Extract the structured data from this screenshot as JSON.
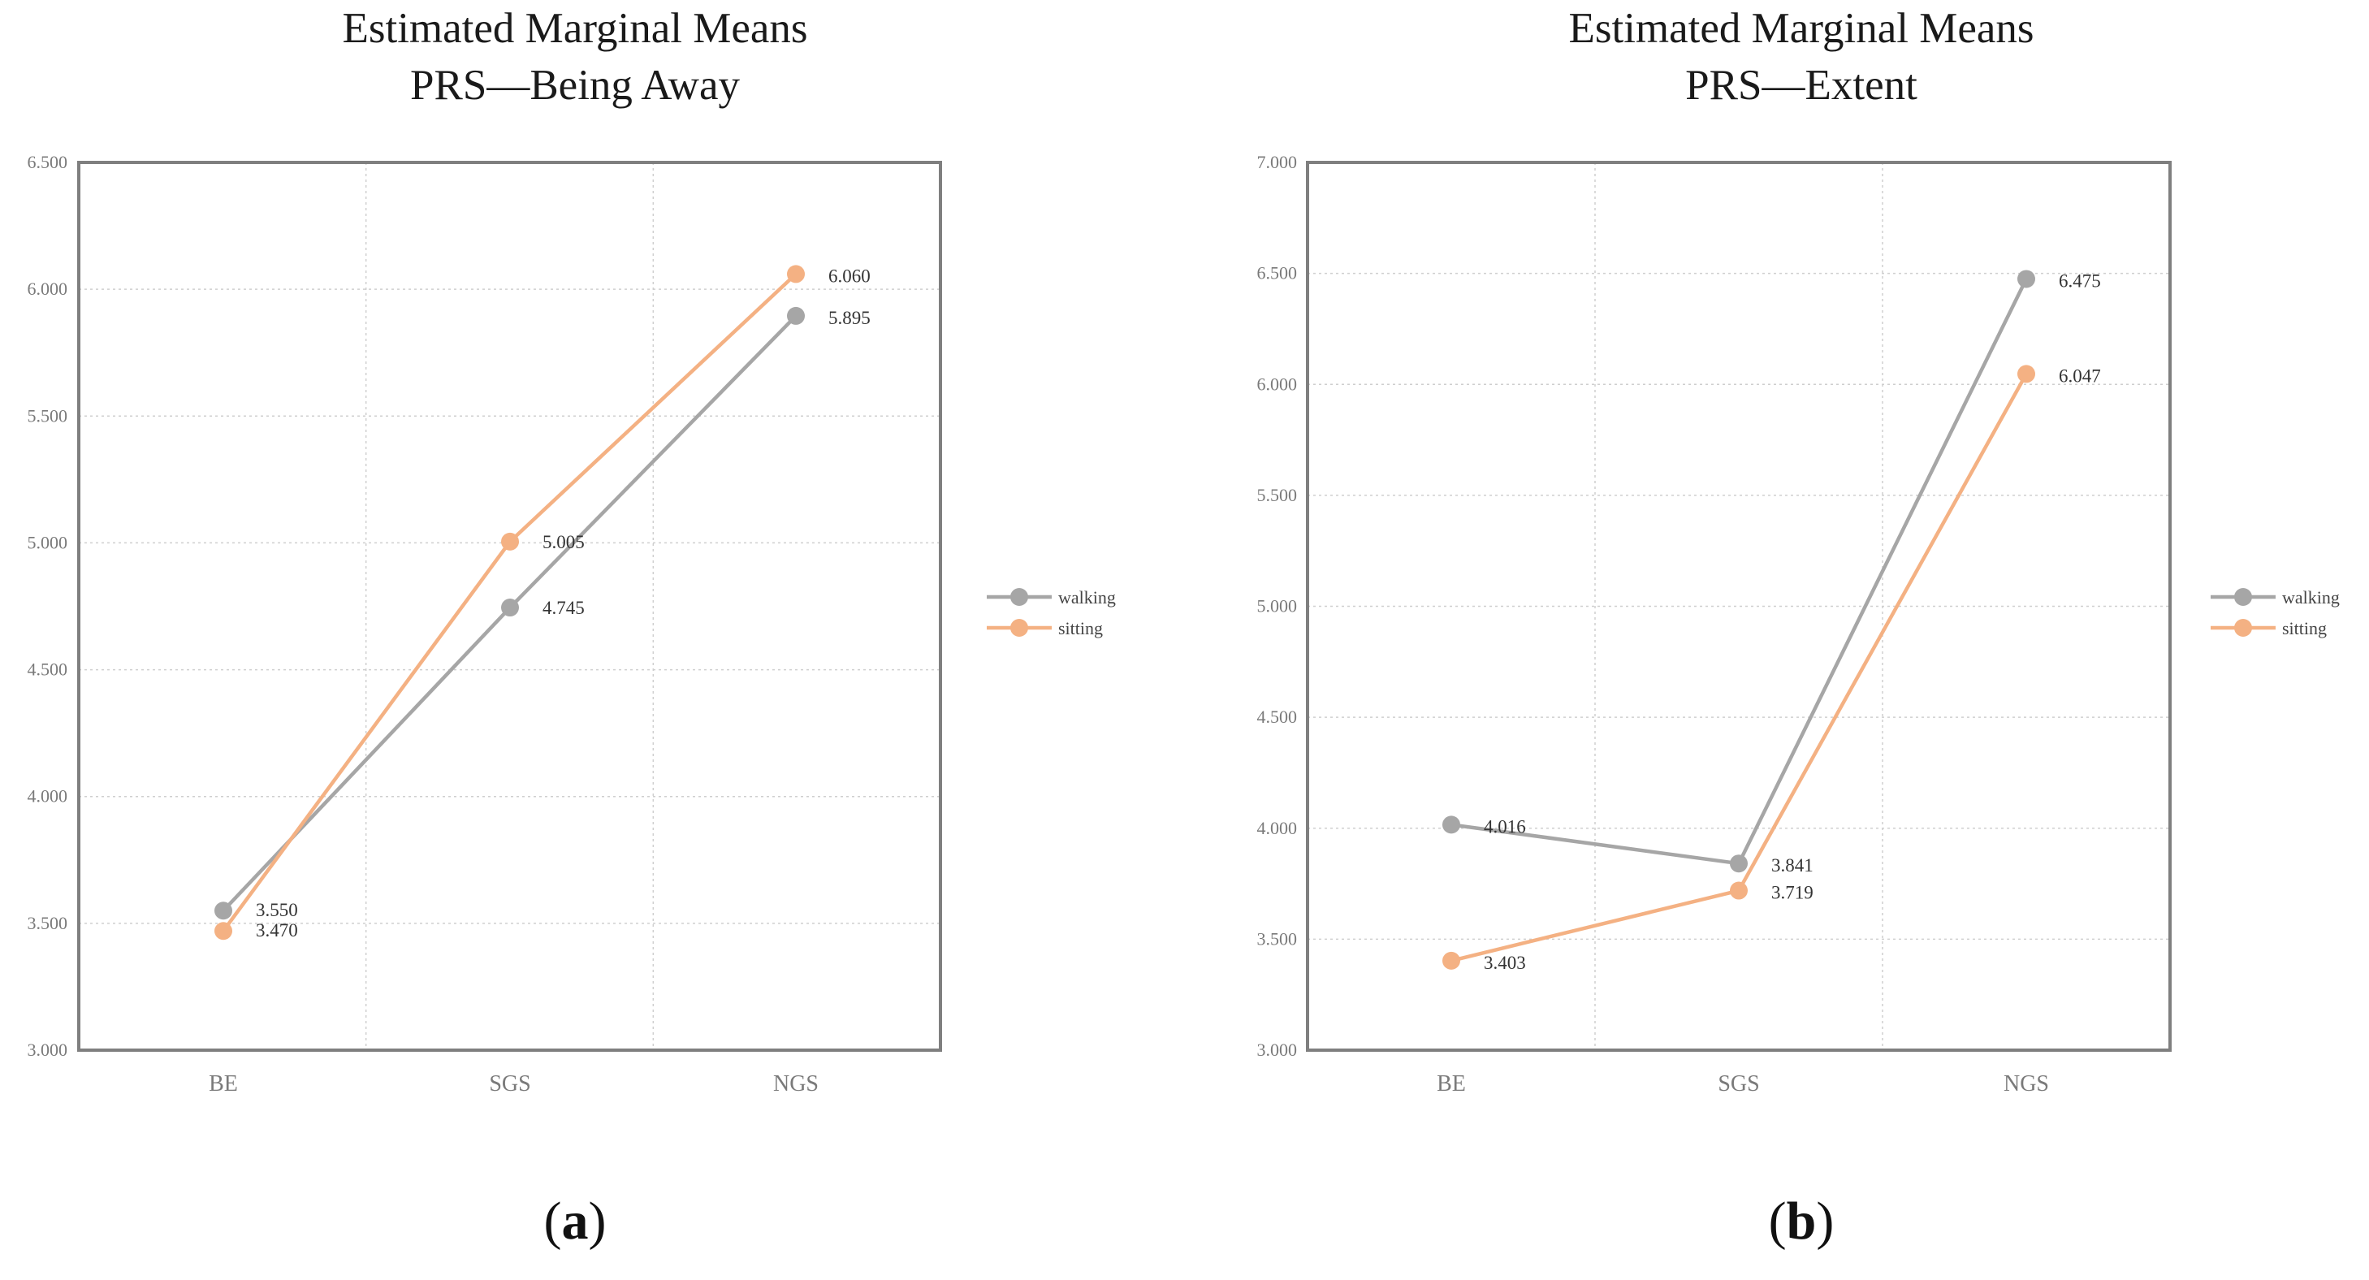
{
  "colors": {
    "walking": "#a6a6a6",
    "sitting": "#f4b183",
    "axis": "#7f7f7f",
    "grid": "#cfcfcf"
  },
  "chart_data": [
    {
      "type": "line",
      "title": [
        "Estimated Marginal Means",
        "PRS—Being Away"
      ],
      "panel_label": "a",
      "categories": [
        "BE",
        "SGS",
        "NGS"
      ],
      "ylim": [
        3.0,
        6.5
      ],
      "yticks": [
        "3.000",
        "3.500",
        "4.000",
        "4.500",
        "5.000",
        "5.500",
        "6.000",
        "6.500"
      ],
      "grid": true,
      "legend_position": "right",
      "series": [
        {
          "name": "walking",
          "values": [
            3.55,
            4.745,
            5.895
          ],
          "labels": [
            "3.550",
            "4.745",
            "5.895"
          ]
        },
        {
          "name": "sitting",
          "values": [
            3.47,
            5.005,
            6.06
          ],
          "labels": [
            "3.470",
            "5.005",
            "6.060"
          ]
        }
      ]
    },
    {
      "type": "line",
      "title": [
        "Estimated Marginal Means",
        "PRS—Extent"
      ],
      "panel_label": "b",
      "categories": [
        "BE",
        "SGS",
        "NGS"
      ],
      "ylim": [
        3.0,
        7.0
      ],
      "yticks": [
        "3.000",
        "3.500",
        "4.000",
        "4.500",
        "5.000",
        "5.500",
        "6.000",
        "6.500",
        "7.000"
      ],
      "grid": true,
      "legend_position": "right",
      "series": [
        {
          "name": "walking",
          "values": [
            4.016,
            3.841,
            6.475
          ],
          "labels": [
            "4.016",
            "3.841",
            "6.475"
          ]
        },
        {
          "name": "sitting",
          "values": [
            3.403,
            3.719,
            6.047
          ],
          "labels": [
            "3.403",
            "3.719",
            "6.047"
          ]
        }
      ]
    }
  ]
}
